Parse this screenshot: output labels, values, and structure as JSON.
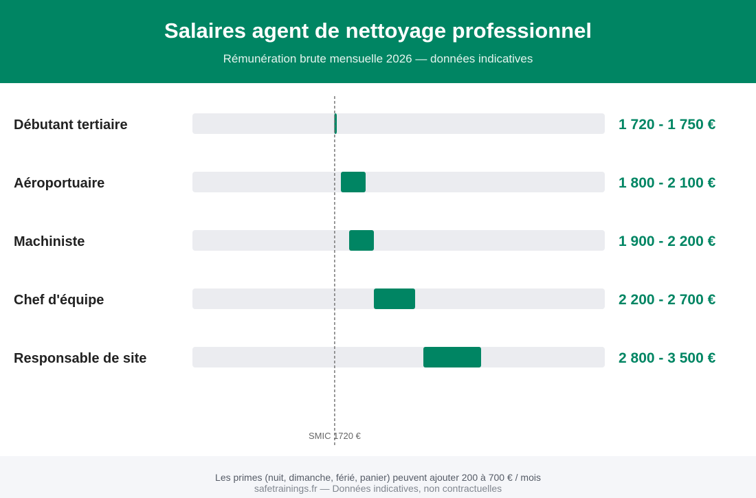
{
  "header": {
    "title": "Salaires agent de nettoyage professionnel",
    "subtitle": "Rémunération brute mensuelle 2026 — données indicatives"
  },
  "chart_data": {
    "type": "bar",
    "orientation": "horizontal-range",
    "categories": [
      "Débutant tertiaire",
      "Aéroportuaire",
      "Machiniste",
      "Chef d'équipe",
      "Responsable de site"
    ],
    "ranges": [
      [
        1720,
        1750
      ],
      [
        1800,
        2100
      ],
      [
        1900,
        2200
      ],
      [
        2200,
        2700
      ],
      [
        2800,
        3500
      ]
    ],
    "value_labels": [
      "1 720 - 1 750 €",
      "1 800 - 2 100 €",
      "1 900 - 2 200 €",
      "2 200 - 2 700 €",
      "2 800 - 3 500 €"
    ],
    "xlim": [
      0,
      5000
    ],
    "reference_line": {
      "value": 1720,
      "label": "SMIC 1720 €"
    },
    "colors": {
      "bar": "#008563",
      "track": "#ebecf0",
      "reference": "#777777"
    }
  },
  "footer": {
    "note": "Les primes (nuit, dimanche, férié, panier) peuvent ajouter 200 à 700 € / mois",
    "source": "safetrainings.fr — Données indicatives, non contractuelles"
  }
}
